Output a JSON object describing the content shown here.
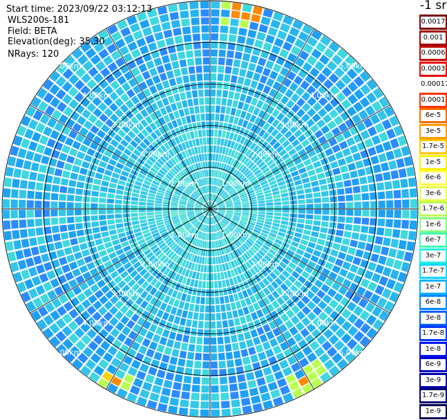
{
  "info": {
    "start_time": "Start time: 2023/09/22 03:12:13",
    "instrument": "WLS200s-181",
    "field": "Field: BETA",
    "elevation": "Elevation(deg): 35.30",
    "nrays": "NRays: 120"
  },
  "colorbar": {
    "unit_label": "-1 sr",
    "entries": [
      {
        "label": "0.0017",
        "color": "#7a0000"
      },
      {
        "label": "0.001",
        "color": "#a30000"
      },
      {
        "label": "0.0006",
        "color": "#c40000"
      },
      {
        "label": "0.0003",
        "color": "#e80000"
      },
      {
        "label": "0.00017",
        "color": "#ffffff"
      },
      {
        "label": "0.0001",
        "color": "#ff3000"
      },
      {
        "label": "6e-5",
        "color": "#ff6a00"
      },
      {
        "label": "3e-5",
        "color": "#ff9a00"
      },
      {
        "label": "1.7e-5",
        "color": "#ffc800"
      },
      {
        "label": "1e-5",
        "color": "#fff000"
      },
      {
        "label": "6e-6",
        "color": "#ffff40"
      },
      {
        "label": "3e-6",
        "color": "#e8ff40"
      },
      {
        "label": "1.7e-6",
        "color": "#b8ff50"
      },
      {
        "label": "1e-6",
        "color": "#80ff80"
      },
      {
        "label": "6e-7",
        "color": "#40ffb0"
      },
      {
        "label": "3e-7",
        "color": "#20f0e0"
      },
      {
        "label": "1.7e-7",
        "color": "#00d8ff"
      },
      {
        "label": "1e-7",
        "color": "#00b0ff"
      },
      {
        "label": "6e-8",
        "color": "#0088ff"
      },
      {
        "label": "3e-8",
        "color": "#0060ff"
      },
      {
        "label": "1.7e-8",
        "color": "#0038ff"
      },
      {
        "label": "1e-8",
        "color": "#0010f0"
      },
      {
        "label": "6e-9",
        "color": "#0000c8"
      },
      {
        "label": "3e-9",
        "color": "#0000a0"
      },
      {
        "label": "1.7e-9",
        "color": "#000078"
      },
      {
        "label": "1e-9",
        "color": "#000050"
      }
    ]
  },
  "chart_data": {
    "type": "heatmap",
    "projection": "polar (PPI scan)",
    "field": "BETA",
    "ring_labels": [
      "1.00km",
      "2.00km",
      "3.00km",
      "4.00km",
      "5.00km"
    ],
    "ring_radii_km": [
      1,
      2,
      3,
      4,
      5
    ],
    "max_range_km": 5,
    "spokes_deg": [
      0,
      30,
      60,
      90,
      120,
      150,
      180,
      210,
      240,
      270,
      300,
      330
    ],
    "nrays": 120,
    "color_scale": "log",
    "value_range": [
      1e-09,
      0.0017
    ],
    "dominant_values": "mostly 1e-7 to 6e-7 (cyan/light blue), higher near center, isolated yellow/red patches at outer edge",
    "hotspot_bearings_deg": [
      10,
      150,
      210
    ]
  }
}
